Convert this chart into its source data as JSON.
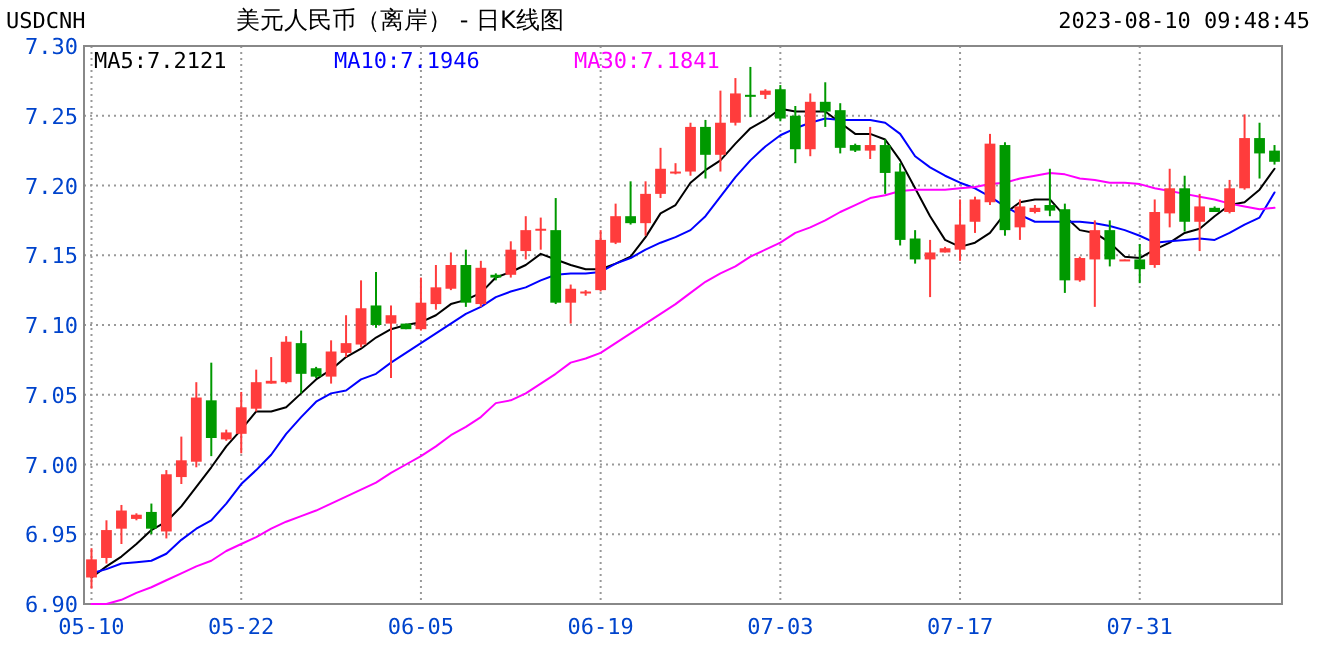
{
  "chart_data": {
    "type": "candlestick",
    "title": "美元人民币（离岸） - 日K线图",
    "subtitle": "USDCNH",
    "annotations": [
      "2023-08-10 09:48:45"
    ],
    "categories": [
      "05-10",
      null,
      null,
      null,
      null,
      null,
      null,
      null,
      null,
      null,
      "05-22",
      null,
      null,
      null,
      null,
      null,
      null,
      null,
      null,
      null,
      null,
      null,
      "06-05",
      null,
      null,
      null,
      null,
      null,
      null,
      null,
      null,
      null,
      null,
      null,
      "06-19",
      null,
      null,
      null,
      null,
      null,
      null,
      null,
      null,
      null,
      null,
      null,
      "07-03",
      null,
      null,
      null,
      null,
      null,
      null,
      null,
      null,
      null,
      null,
      null,
      "07-17",
      null,
      null,
      null,
      null,
      null,
      null,
      null,
      null,
      null,
      null,
      null,
      "07-31",
      null,
      null,
      null,
      null,
      null,
      null,
      null,
      null,
      null
    ],
    "ohlc": [
      [
        6.919,
        6.94,
        6.911,
        6.932
      ],
      [
        6.933,
        6.96,
        6.929,
        6.953
      ],
      [
        6.954,
        6.971,
        6.943,
        6.967
      ],
      [
        6.961,
        6.965,
        6.96,
        6.964
      ],
      [
        6.966,
        6.972,
        6.95,
        6.954
      ],
      [
        6.952,
        6.996,
        6.947,
        6.993
      ],
      [
        6.991,
        7.02,
        6.986,
        7.003
      ],
      [
        7.002,
        7.059,
        6.998,
        7.048
      ],
      [
        7.046,
        7.073,
        7.006,
        7.019
      ],
      [
        7.018,
        7.025,
        7.017,
        7.023
      ],
      [
        7.022,
        7.052,
        7.008,
        7.041
      ],
      [
        7.04,
        7.068,
        7.038,
        7.059
      ],
      [
        7.058,
        7.077,
        7.058,
        7.06
      ],
      [
        7.059,
        7.092,
        7.058,
        7.088
      ],
      [
        7.087,
        7.096,
        7.051,
        7.065
      ],
      [
        7.069,
        7.07,
        7.062,
        7.063
      ],
      [
        7.063,
        7.089,
        7.058,
        7.081
      ],
      [
        7.08,
        7.107,
        7.077,
        7.087
      ],
      [
        7.086,
        7.132,
        7.084,
        7.112
      ],
      [
        7.114,
        7.138,
        7.098,
        7.1
      ],
      [
        7.101,
        7.114,
        7.062,
        7.107
      ],
      [
        7.101,
        7.101,
        7.097,
        7.097
      ],
      [
        7.097,
        7.134,
        7.096,
        7.116
      ],
      [
        7.115,
        7.143,
        7.111,
        7.127
      ],
      [
        7.126,
        7.152,
        7.125,
        7.143
      ],
      [
        7.143,
        7.154,
        7.113,
        7.116
      ],
      [
        7.115,
        7.146,
        7.113,
        7.141
      ],
      [
        7.136,
        7.137,
        7.132,
        7.134
      ],
      [
        7.136,
        7.16,
        7.134,
        7.154
      ],
      [
        7.153,
        7.178,
        7.147,
        7.168
      ],
      [
        7.168,
        7.177,
        7.154,
        7.169
      ],
      [
        7.168,
        7.191,
        7.115,
        7.116
      ],
      [
        7.116,
        7.129,
        7.101,
        7.126
      ],
      [
        7.123,
        7.125,
        7.121,
        7.124
      ],
      [
        7.125,
        7.168,
        7.124,
        7.161
      ],
      [
        7.159,
        7.187,
        7.158,
        7.178
      ],
      [
        7.178,
        7.203,
        7.172,
        7.173
      ],
      [
        7.173,
        7.203,
        7.164,
        7.194
      ],
      [
        7.194,
        7.227,
        7.191,
        7.212
      ],
      [
        7.209,
        7.216,
        7.208,
        7.21
      ],
      [
        7.21,
        7.245,
        7.207,
        7.242
      ],
      [
        7.242,
        7.247,
        7.205,
        7.222
      ],
      [
        7.222,
        7.268,
        7.21,
        7.245
      ],
      [
        7.245,
        7.277,
        7.243,
        7.266
      ],
      [
        7.265,
        7.285,
        7.249,
        7.264
      ],
      [
        7.265,
        7.269,
        7.262,
        7.268
      ],
      [
        7.269,
        7.272,
        7.246,
        7.248
      ],
      [
        7.25,
        7.257,
        7.216,
        7.226
      ],
      [
        7.226,
        7.266,
        7.221,
        7.26
      ],
      [
        7.26,
        7.274,
        7.242,
        7.253
      ],
      [
        7.254,
        7.259,
        7.223,
        7.227
      ],
      [
        7.229,
        7.23,
        7.224,
        7.225
      ],
      [
        7.225,
        7.242,
        7.219,
        7.229
      ],
      [
        7.229,
        7.233,
        7.194,
        7.209
      ],
      [
        7.21,
        7.216,
        7.157,
        7.161
      ],
      [
        7.162,
        7.168,
        7.144,
        7.147
      ],
      [
        7.147,
        7.161,
        7.12,
        7.152
      ],
      [
        7.152,
        7.156,
        7.152,
        7.155
      ],
      [
        7.154,
        7.19,
        7.146,
        7.172
      ],
      [
        7.174,
        7.192,
        7.166,
        7.19
      ],
      [
        7.188,
        7.237,
        7.186,
        7.23
      ],
      [
        7.229,
        7.231,
        7.164,
        7.168
      ],
      [
        7.17,
        7.19,
        7.161,
        7.185
      ],
      [
        7.181,
        7.186,
        7.18,
        7.184
      ],
      [
        7.186,
        7.212,
        7.178,
        7.182
      ],
      [
        7.183,
        7.187,
        7.123,
        7.132
      ],
      [
        7.132,
        7.149,
        7.131,
        7.148
      ],
      [
        7.147,
        7.175,
        7.113,
        7.168
      ],
      [
        7.168,
        7.175,
        7.142,
        7.147
      ],
      [
        7.146,
        7.147,
        7.146,
        7.147
      ],
      [
        7.147,
        7.158,
        7.13,
        7.14
      ],
      [
        7.143,
        7.19,
        7.141,
        7.181
      ],
      [
        7.18,
        7.212,
        7.17,
        7.198
      ],
      [
        7.198,
        7.207,
        7.167,
        7.174
      ],
      [
        7.174,
        7.194,
        7.153,
        7.185
      ],
      [
        7.184,
        7.185,
        7.181,
        7.181
      ],
      [
        7.181,
        7.204,
        7.18,
        7.198
      ],
      [
        7.198,
        7.251,
        7.197,
        7.234
      ],
      [
        7.234,
        7.245,
        7.205,
        7.223
      ],
      [
        7.225,
        7.229,
        7.215,
        7.217
      ]
    ],
    "series": [
      {
        "name": "MA5:7.2121",
        "type": "line",
        "color": "#000000",
        "values": [
          6.919,
          6.927,
          6.934,
          6.943,
          6.953,
          6.959,
          6.97,
          6.984,
          6.998,
          7.013,
          7.025,
          7.038,
          7.038,
          7.041,
          7.051,
          7.061,
          7.068,
          7.077,
          7.083,
          7.091,
          7.097,
          7.1,
          7.102,
          7.107,
          7.115,
          7.118,
          7.123,
          7.134,
          7.138,
          7.143,
          7.151,
          7.147,
          7.143,
          7.14,
          7.14,
          7.144,
          7.149,
          7.163,
          7.18,
          7.186,
          7.202,
          7.211,
          7.218,
          7.23,
          7.241,
          7.247,
          7.255,
          7.253,
          7.253,
          7.253,
          7.245,
          7.237,
          7.237,
          7.233,
          7.218,
          7.198,
          7.178,
          7.161,
          7.156,
          7.159,
          7.166,
          7.18,
          7.188,
          7.19,
          7.19,
          7.178,
          7.168,
          7.166,
          7.159,
          7.149,
          7.148,
          7.154,
          7.159,
          7.166,
          7.169,
          7.178,
          7.186,
          7.188,
          7.197,
          7.212
        ]
      },
      {
        "name": "MA10:7.1946",
        "type": "line",
        "color": "#0000ff",
        "values": [
          6.922,
          6.925,
          6.929,
          6.93,
          6.931,
          6.936,
          6.946,
          6.954,
          6.96,
          6.972,
          6.986,
          6.996,
          7.007,
          7.022,
          7.034,
          7.045,
          7.051,
          7.053,
          7.061,
          7.065,
          7.073,
          7.08,
          7.087,
          7.094,
          7.101,
          7.108,
          7.113,
          7.12,
          7.124,
          7.127,
          7.132,
          7.136,
          7.137,
          7.137,
          7.138,
          7.144,
          7.148,
          7.154,
          7.159,
          7.163,
          7.168,
          7.178,
          7.192,
          7.206,
          7.218,
          7.228,
          7.236,
          7.241,
          7.245,
          7.248,
          7.247,
          7.247,
          7.247,
          7.245,
          7.237,
          7.221,
          7.213,
          7.207,
          7.202,
          7.198,
          7.192,
          7.185,
          7.179,
          7.174,
          7.174,
          7.174,
          7.174,
          7.173,
          7.171,
          7.168,
          7.164,
          7.159,
          7.16,
          7.161,
          7.162,
          7.161,
          7.166,
          7.172,
          7.177,
          7.195
        ]
      },
      {
        "name": "MA30:7.1841",
        "type": "line",
        "color": "#ff00ff",
        "values": [
          6.9,
          6.9,
          6.903,
          6.908,
          6.912,
          6.917,
          6.922,
          6.927,
          6.931,
          6.938,
          6.943,
          6.948,
          6.954,
          6.959,
          6.963,
          6.967,
          6.972,
          6.977,
          6.982,
          6.987,
          6.994,
          7.0,
          7.006,
          7.013,
          7.021,
          7.027,
          7.034,
          7.044,
          7.046,
          7.051,
          7.058,
          7.065,
          7.073,
          7.076,
          7.08,
          7.087,
          7.094,
          7.101,
          7.108,
          7.115,
          7.123,
          7.131,
          7.137,
          7.142,
          7.149,
          7.154,
          7.159,
          7.166,
          7.17,
          7.175,
          7.181,
          7.186,
          7.191,
          7.193,
          7.196,
          7.197,
          7.197,
          7.197,
          7.198,
          7.199,
          7.201,
          7.202,
          7.205,
          7.207,
          7.209,
          7.208,
          7.205,
          7.204,
          7.202,
          7.202,
          7.201,
          7.198,
          7.196,
          7.194,
          7.192,
          7.19,
          7.187,
          7.185,
          7.183,
          7.184
        ]
      }
    ],
    "ylim": [
      6.9,
      7.3
    ],
    "yticks": [
      {
        "value": 6.9,
        "label": "6.90"
      },
      {
        "value": 6.95,
        "label": "6.95"
      },
      {
        "value": 7.0,
        "label": "7.00"
      },
      {
        "value": 7.05,
        "label": "7.05"
      },
      {
        "value": 7.1,
        "label": "7.10"
      },
      {
        "value": 7.15,
        "label": "7.15"
      },
      {
        "value": 7.2,
        "label": "7.20"
      },
      {
        "value": 7.25,
        "label": "7.25"
      },
      {
        "value": 7.3,
        "label": "7.30"
      }
    ],
    "grid": true
  }
}
